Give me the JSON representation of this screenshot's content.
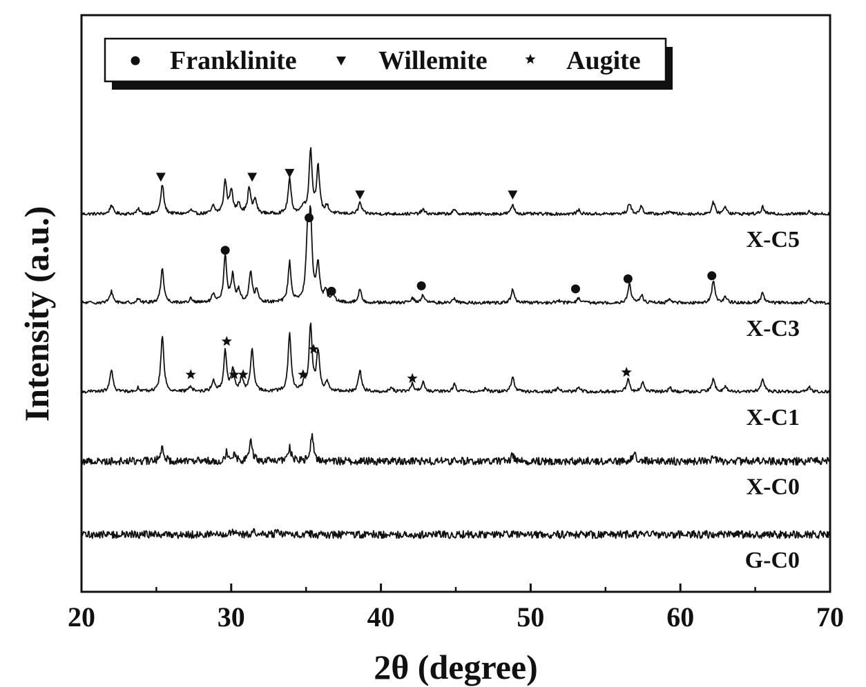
{
  "chart_data": {
    "type": "line",
    "xlabel": "2θ  (degree)",
    "ylabel": "Intensity (a.u.)",
    "xlim": [
      20,
      70
    ],
    "x_ticks": [
      "20",
      "30",
      "40",
      "50",
      "60",
      "70"
    ],
    "x_minor_ticks": [
      25,
      35,
      45,
      55,
      65
    ],
    "y_ticks": [],
    "grid": false,
    "legend_position": "top-left",
    "legend": [
      {
        "label": "Franklinite",
        "marker": "circle"
      },
      {
        "label": "Willemite",
        "marker": "triangle-down"
      },
      {
        "label": "Augite",
        "marker": "star"
      }
    ],
    "series": [
      {
        "name": "X-C5",
        "offset": 4.15,
        "noise": 0.02,
        "peaks": [
          [
            22.0,
            0.12
          ],
          [
            23.8,
            0.06
          ],
          [
            25.4,
            0.38
          ],
          [
            27.3,
            0.05
          ],
          [
            28.8,
            0.1
          ],
          [
            29.6,
            0.42
          ],
          [
            30.0,
            0.3
          ],
          [
            30.5,
            0.14
          ],
          [
            31.2,
            0.33
          ],
          [
            31.6,
            0.18
          ],
          [
            33.9,
            0.45
          ],
          [
            34.8,
            0.1
          ],
          [
            35.3,
            0.82
          ],
          [
            35.8,
            0.6
          ],
          [
            36.4,
            0.1
          ],
          [
            38.6,
            0.15
          ],
          [
            42.8,
            0.06
          ],
          [
            44.9,
            0.05
          ],
          [
            48.8,
            0.12
          ],
          [
            53.2,
            0.05
          ],
          [
            56.6,
            0.14
          ],
          [
            57.4,
            0.1
          ],
          [
            59.3,
            0.04
          ],
          [
            62.2,
            0.15
          ],
          [
            63.0,
            0.1
          ],
          [
            65.5,
            0.09
          ],
          [
            68.6,
            0.04
          ]
        ],
        "markers": [
          {
            "type": "triangle-down",
            "x": 25.3,
            "height": 0.48
          },
          {
            "type": "triangle-down",
            "x": 31.4,
            "height": 0.48
          },
          {
            "type": "triangle-down",
            "x": 33.9,
            "height": 0.53
          },
          {
            "type": "triangle-down",
            "x": 38.6,
            "height": 0.25
          },
          {
            "type": "triangle-down",
            "x": 48.8,
            "height": 0.25
          }
        ]
      },
      {
        "name": "X-C3",
        "offset": 3.0,
        "noise": 0.02,
        "peaks": [
          [
            22.0,
            0.15
          ],
          [
            23.8,
            0.05
          ],
          [
            25.4,
            0.45
          ],
          [
            27.3,
            0.05
          ],
          [
            28.8,
            0.1
          ],
          [
            29.6,
            0.6
          ],
          [
            30.1,
            0.35
          ],
          [
            30.5,
            0.15
          ],
          [
            31.3,
            0.4
          ],
          [
            31.7,
            0.15
          ],
          [
            33.9,
            0.52
          ],
          [
            35.1,
            0.8
          ],
          [
            35.3,
            1.0
          ],
          [
            35.8,
            0.5
          ],
          [
            36.3,
            0.15
          ],
          [
            36.8,
            0.1
          ],
          [
            38.6,
            0.17
          ],
          [
            42.1,
            0.06
          ],
          [
            42.8,
            0.1
          ],
          [
            44.9,
            0.06
          ],
          [
            48.8,
            0.17
          ],
          [
            51.8,
            0.04
          ],
          [
            53.2,
            0.06
          ],
          [
            56.6,
            0.25
          ],
          [
            57.4,
            0.1
          ],
          [
            59.3,
            0.04
          ],
          [
            62.2,
            0.28
          ],
          [
            63.0,
            0.08
          ],
          [
            65.5,
            0.13
          ],
          [
            68.6,
            0.04
          ]
        ],
        "markers": [
          {
            "type": "circle",
            "x": 29.6,
            "height": 0.68
          },
          {
            "type": "circle",
            "x": 35.2,
            "height": 1.1
          },
          {
            "type": "circle",
            "x": 36.7,
            "height": 0.15
          },
          {
            "type": "circle",
            "x": 42.7,
            "height": 0.22
          },
          {
            "type": "circle",
            "x": 53.0,
            "height": 0.18
          },
          {
            "type": "circle",
            "x": 56.5,
            "height": 0.31
          },
          {
            "type": "circle",
            "x": 62.1,
            "height": 0.35
          }
        ]
      },
      {
        "name": "X-C1",
        "offset": 1.85,
        "noise": 0.02,
        "peaks": [
          [
            22.0,
            0.28
          ],
          [
            23.8,
            0.05
          ],
          [
            25.4,
            0.72
          ],
          [
            27.3,
            0.07
          ],
          [
            28.8,
            0.14
          ],
          [
            29.6,
            0.52
          ],
          [
            30.1,
            0.28
          ],
          [
            30.7,
            0.18
          ],
          [
            31.4,
            0.55
          ],
          [
            33.9,
            0.74
          ],
          [
            34.9,
            0.12
          ],
          [
            35.3,
            0.84
          ],
          [
            35.8,
            0.52
          ],
          [
            36.4,
            0.12
          ],
          [
            38.6,
            0.28
          ],
          [
            40.7,
            0.05
          ],
          [
            42.1,
            0.1
          ],
          [
            42.8,
            0.12
          ],
          [
            44.9,
            0.1
          ],
          [
            47.0,
            0.05
          ],
          [
            48.8,
            0.2
          ],
          [
            51.8,
            0.05
          ],
          [
            53.2,
            0.06
          ],
          [
            56.5,
            0.16
          ],
          [
            57.5,
            0.12
          ],
          [
            59.3,
            0.05
          ],
          [
            62.2,
            0.16
          ],
          [
            63.0,
            0.07
          ],
          [
            65.5,
            0.18
          ],
          [
            68.6,
            0.07
          ]
        ],
        "markers": [
          {
            "type": "star",
            "x": 27.3,
            "height": 0.22
          },
          {
            "type": "star",
            "x": 29.7,
            "height": 0.65
          },
          {
            "type": "star",
            "x": 30.2,
            "height": 0.22
          },
          {
            "type": "star",
            "x": 30.8,
            "height": 0.22
          },
          {
            "type": "star",
            "x": 34.8,
            "height": 0.22
          },
          {
            "type": "star",
            "x": 35.5,
            "height": 0.55
          },
          {
            "type": "star",
            "x": 42.1,
            "height": 0.17
          },
          {
            "type": "star",
            "x": 56.4,
            "height": 0.25
          }
        ]
      },
      {
        "name": "X-C0",
        "offset": 0.95,
        "noise": 0.05,
        "peaks": [
          [
            25.4,
            0.2
          ],
          [
            27.3,
            0.06
          ],
          [
            29.7,
            0.12
          ],
          [
            30.2,
            0.1
          ],
          [
            31.3,
            0.28
          ],
          [
            33.9,
            0.18
          ],
          [
            35.4,
            0.33
          ],
          [
            48.8,
            0.08
          ],
          [
            56.9,
            0.1
          ],
          [
            62.2,
            0.06
          ]
        ],
        "markers": []
      },
      {
        "name": "G-C0",
        "offset": 0.0,
        "noise": 0.05,
        "peaks": [
          [
            30.0,
            0.03
          ],
          [
            31.5,
            0.04
          ],
          [
            33.0,
            0.03
          ],
          [
            35.0,
            0.03
          ]
        ],
        "markers": []
      }
    ]
  }
}
